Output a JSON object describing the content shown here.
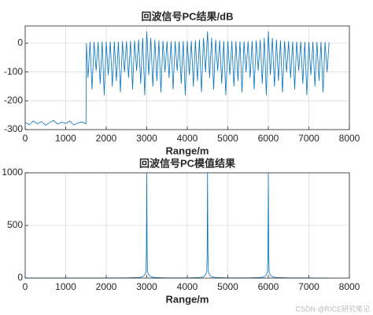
{
  "chart_data": [
    {
      "type": "line",
      "title": "回波信号PC结果/dB",
      "x_label": "Range/m",
      "color": "#0072bd",
      "grid": true,
      "xlim": [
        0,
        8000
      ],
      "xticks": [
        0,
        1000,
        2000,
        3000,
        4000,
        5000,
        6000,
        7000,
        8000
      ],
      "ylim": [
        -300,
        60
      ],
      "yticks": [
        -300,
        -200,
        -100,
        0
      ],
      "x": [
        0,
        100,
        200,
        300,
        400,
        500,
        600,
        700,
        800,
        900,
        1000,
        1100,
        1200,
        1300,
        1400,
        1500,
        1510,
        1550,
        1600,
        1650,
        1700,
        1750,
        1800,
        1850,
        1900,
        1950,
        2000,
        2050,
        2100,
        2150,
        2200,
        2250,
        2300,
        2350,
        2400,
        2450,
        2500,
        2550,
        2600,
        2650,
        2700,
        2750,
        2800,
        2850,
        2900,
        2950,
        3000,
        3050,
        3100,
        3150,
        3200,
        3250,
        3300,
        3350,
        3400,
        3450,
        3500,
        3550,
        3600,
        3650,
        3700,
        3750,
        3800,
        3850,
        3900,
        3950,
        4000,
        4050,
        4100,
        4150,
        4200,
        4250,
        4300,
        4350,
        4400,
        4450,
        4500,
        4550,
        4600,
        4650,
        4700,
        4750,
        4800,
        4850,
        4900,
        4950,
        5000,
        5050,
        5100,
        5150,
        5200,
        5250,
        5300,
        5350,
        5400,
        5450,
        5500,
        5550,
        5600,
        5650,
        5700,
        5750,
        5800,
        5850,
        5900,
        5950,
        6000,
        6050,
        6100,
        6150,
        6200,
        6250,
        6300,
        6350,
        6400,
        6450,
        6500,
        6550,
        6600,
        6650,
        6700,
        6750,
        6800,
        6850,
        6900,
        6950,
        7000,
        7050,
        7100,
        7150,
        7200,
        7250,
        7300,
        7350,
        7400,
        7450,
        7500
      ],
      "values": [
        -275,
        -283,
        -270,
        -280,
        -272,
        -285,
        -276,
        -268,
        -281,
        -274,
        -279,
        -270,
        -284,
        -277,
        -273,
        -280,
        0,
        -120,
        4,
        -160,
        4,
        -95,
        4,
        -140,
        5,
        -180,
        5,
        -110,
        5,
        -150,
        5,
        -130,
        5,
        -170,
        6,
        -100,
        6,
        -120,
        7,
        -160,
        9,
        -95,
        12,
        -140,
        18,
        -180,
        40,
        -110,
        18,
        -150,
        12,
        -130,
        9,
        -170,
        7,
        -100,
        6,
        -120,
        6,
        -160,
        6,
        -95,
        6,
        -140,
        7,
        -180,
        7,
        -110,
        7,
        -150,
        9,
        -130,
        12,
        -170,
        18,
        -100,
        40,
        -120,
        18,
        -160,
        12,
        -95,
        9,
        -140,
        7,
        -180,
        7,
        -110,
        7,
        -150,
        6,
        -130,
        6,
        -170,
        6,
        -100,
        6,
        -120,
        7,
        -160,
        9,
        -95,
        12,
        -140,
        18,
        -180,
        40,
        -110,
        18,
        -150,
        12,
        -130,
        9,
        -170,
        7,
        -100,
        6,
        -120,
        5,
        -160,
        5,
        -95,
        5,
        -140,
        4,
        -180,
        4,
        -110,
        4,
        -150,
        4,
        -130,
        4,
        -170,
        3,
        -100,
        3
      ]
    },
    {
      "type": "line",
      "title": "回波信号PC模值结果",
      "x_label": "Range/m",
      "color": "#0072bd",
      "grid": true,
      "xlim": [
        0,
        8000
      ],
      "xticks": [
        0,
        1000,
        2000,
        3000,
        4000,
        5000,
        6000,
        7000,
        8000
      ],
      "ylim": [
        0,
        1000
      ],
      "yticks": [
        0,
        500,
        1000
      ],
      "x": [
        0,
        1500,
        2500,
        2800,
        2900,
        2950,
        2980,
        2990,
        3000,
        3010,
        3020,
        3050,
        3100,
        3200,
        3500,
        4000,
        4300,
        4400,
        4450,
        4480,
        4490,
        4500,
        4510,
        4520,
        4550,
        4600,
        4700,
        5000,
        5500,
        5800,
        5900,
        5950,
        5980,
        5990,
        6000,
        6010,
        6020,
        6050,
        6100,
        6200,
        6500,
        7500
      ],
      "values": [
        0,
        0,
        2,
        5,
        12,
        30,
        60,
        230,
        1000,
        230,
        60,
        30,
        12,
        5,
        2,
        2,
        5,
        12,
        30,
        60,
        230,
        1000,
        230,
        60,
        30,
        12,
        5,
        2,
        2,
        5,
        12,
        30,
        60,
        230,
        1000,
        230,
        60,
        30,
        12,
        5,
        2,
        0
      ]
    }
  ],
  "watermark": "CSDN @RICE研究笔记"
}
